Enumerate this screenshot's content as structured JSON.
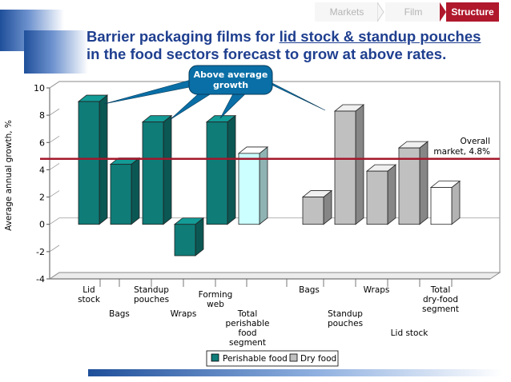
{
  "nav": {
    "steps": [
      "Markets",
      "Film",
      "Structure"
    ],
    "active": "Structure"
  },
  "title": {
    "line1_prefix": "Barrier packaging films for ",
    "line1_highlight": "lid stock & standup pouches",
    "line2": "in the food sectors forecast to grow at above rates."
  },
  "chart_data": {
    "type": "bar",
    "ylabel": "Average annual growth, %",
    "ylim": [
      -4,
      10
    ],
    "yticks": [
      -4,
      -2,
      0,
      2,
      4,
      6,
      8,
      10
    ],
    "legend": {
      "position": "bottom",
      "entries": [
        "Perishable food",
        "Dry food"
      ]
    },
    "series": [
      {
        "name": "Perishable food",
        "color": "#0f7c78",
        "categories": [
          "Lid stock",
          "Bags",
          "Standup pouches",
          "Wraps",
          "Forming web",
          "Total perishable food segment"
        ],
        "values": [
          9.0,
          4.4,
          7.5,
          -2.3,
          7.5,
          5.2
        ]
      },
      {
        "name": "Dry food",
        "color": "#c0c0c0",
        "categories": [
          "Bags",
          "Standup pouches",
          "Wraps",
          "Lid stock",
          "Total dry-food segment"
        ],
        "values": [
          2.0,
          8.3,
          3.9,
          5.6,
          2.7
        ]
      }
    ],
    "tick_labels": [
      "Lid\nstock",
      "Bags",
      "Standup\npouches",
      "Wraps",
      "Forming\nweb",
      "Total\nperishable\nfood\nsegment",
      "Bags",
      "Standup\npouches",
      "Wraps",
      "Lid stock",
      "Total\ndry-food\nsegment"
    ],
    "reference_line": {
      "value": 4.8,
      "label": "Overall market, 4.8%",
      "color": "#a3182c"
    },
    "callout": {
      "text": "Above average growth",
      "color": "#0a6fa6"
    }
  }
}
